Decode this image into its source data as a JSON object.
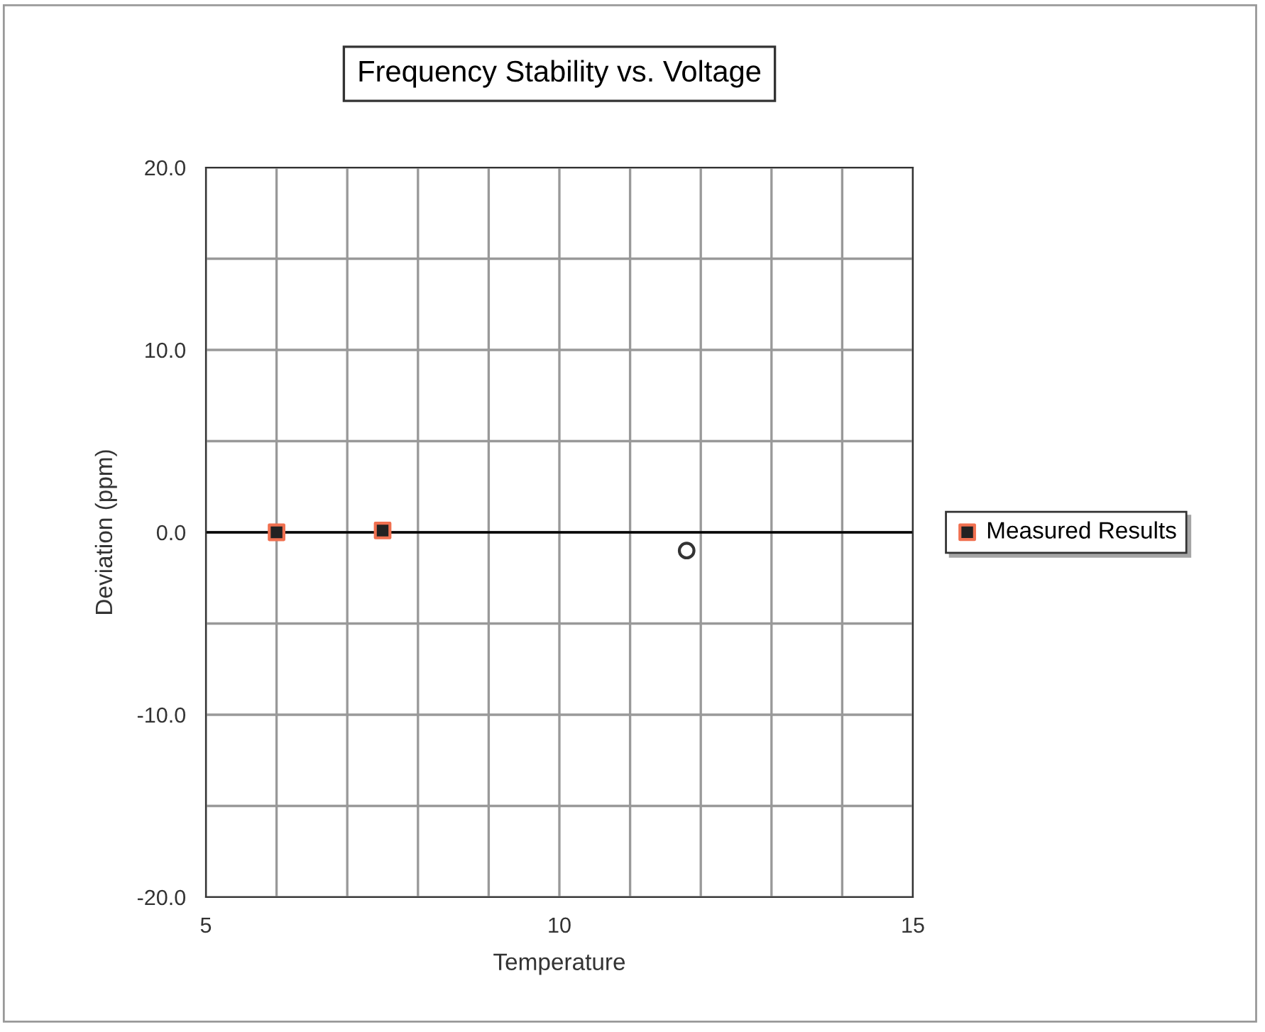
{
  "chart_data": {
    "type": "scatter",
    "title": "Frequency Stability vs. Voltage",
    "xlabel": "Temperature",
    "ylabel": "Deviation (ppm)",
    "xlim": [
      5,
      15
    ],
    "xticks": [
      5,
      {
        "value": 6,
        "label": null
      },
      {
        "value": 7,
        "label": null
      },
      {
        "value": 8,
        "label": null
      },
      {
        "value": 9,
        "label": null
      },
      10,
      {
        "value": 11,
        "label": null
      },
      {
        "value": 12,
        "label": null
      },
      {
        "value": 13,
        "label": null
      },
      {
        "value": 14,
        "label": null
      },
      15
    ],
    "ylim": [
      -20,
      20
    ],
    "yticks": [
      {
        "value": -20,
        "label": "-20.0"
      },
      {
        "value": -15,
        "label": null
      },
      {
        "value": -10,
        "label": "-10.0"
      },
      {
        "value": -5,
        "label": null
      },
      {
        "value": 0,
        "label": "0.0"
      },
      {
        "value": 5,
        "label": null
      },
      {
        "value": 10,
        "label": "10.0"
      },
      {
        "value": 15,
        "label": null
      },
      {
        "value": 20,
        "label": "20.0"
      }
    ],
    "grid": true,
    "legend": "right",
    "ref_lines": [
      {
        "axis": "y",
        "value": 0,
        "color": "#000000"
      }
    ],
    "series": [
      {
        "name": "Measured Results",
        "color": "#222222",
        "marker": "square",
        "x": [
          6.0,
          7.5
        ],
        "values": [
          0.0,
          0.1
        ]
      },
      {
        "color": "#333333",
        "marker": "circle",
        "x": [
          11.8
        ],
        "values": [
          -1.0
        ]
      }
    ]
  }
}
